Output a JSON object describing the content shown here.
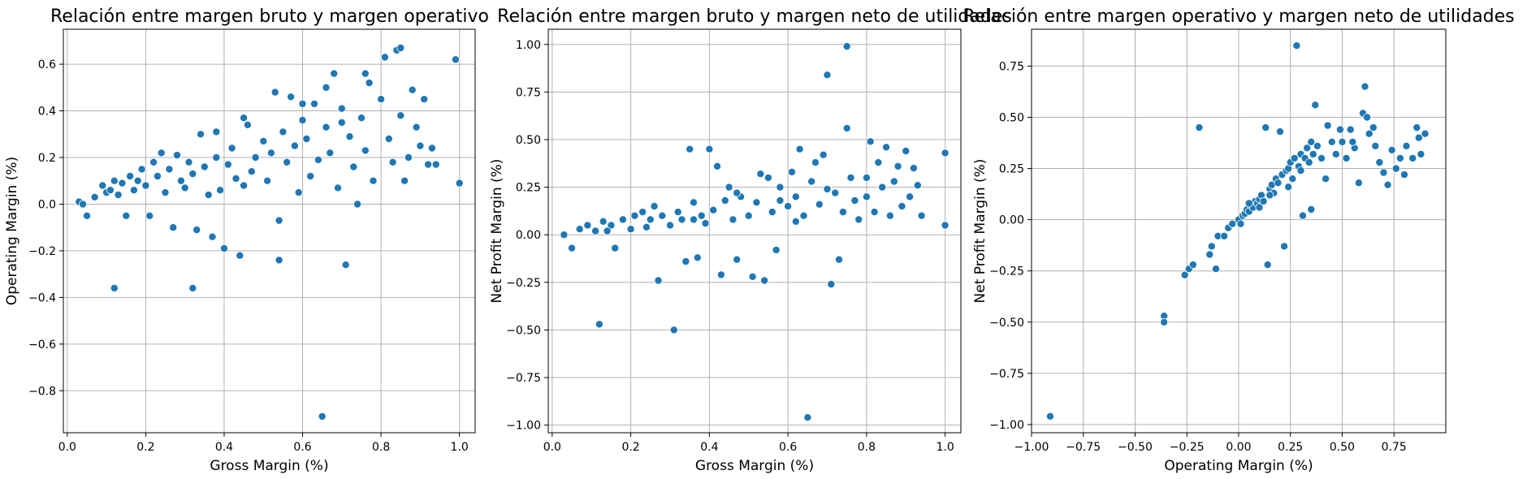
{
  "chart_data": [
    {
      "type": "scatter",
      "title": "Relación entre margen bruto y margen operativo",
      "xlabel": "Gross Margin (%)",
      "ylabel": "Operating Margin (%)",
      "xlim": [
        -0.01,
        1.04
      ],
      "ylim": [
        -0.98,
        0.75
      ],
      "xticks": [
        0.0,
        0.2,
        0.4,
        0.6,
        0.8,
        1.0
      ],
      "xtick_labels": [
        "0.0",
        "0.2",
        "0.4",
        "0.6",
        "0.8",
        "1.0"
      ],
      "yticks": [
        -0.8,
        -0.6,
        -0.4,
        -0.2,
        0.0,
        0.2,
        0.4,
        0.6
      ],
      "ytick_labels": [
        "−0.8",
        "−0.6",
        "−0.4",
        "−0.2",
        "0.0",
        "0.2",
        "0.4",
        "0.6"
      ],
      "grid": true,
      "points": [
        [
          0.03,
          0.01
        ],
        [
          0.04,
          0.0
        ],
        [
          0.05,
          -0.05
        ],
        [
          0.07,
          0.03
        ],
        [
          0.09,
          0.08
        ],
        [
          0.1,
          0.05
        ],
        [
          0.11,
          0.06
        ],
        [
          0.12,
          0.1
        ],
        [
          0.13,
          0.04
        ],
        [
          0.14,
          0.09
        ],
        [
          0.15,
          -0.05
        ],
        [
          0.16,
          0.12
        ],
        [
          0.17,
          0.06
        ],
        [
          0.18,
          0.1
        ],
        [
          0.19,
          0.15
        ],
        [
          0.2,
          0.08
        ],
        [
          0.21,
          -0.05
        ],
        [
          0.22,
          0.18
        ],
        [
          0.23,
          0.12
        ],
        [
          0.25,
          0.05
        ],
        [
          0.26,
          0.15
        ],
        [
          0.27,
          -0.1
        ],
        [
          0.28,
          0.21
        ],
        [
          0.29,
          0.1
        ],
        [
          0.3,
          0.07
        ],
        [
          0.31,
          0.18
        ],
        [
          0.32,
          0.13
        ],
        [
          0.33,
          -0.11
        ],
        [
          0.34,
          0.3
        ],
        [
          0.35,
          0.16
        ],
        [
          0.36,
          0.04
        ],
        [
          0.37,
          -0.14
        ],
        [
          0.38,
          0.2
        ],
        [
          0.39,
          0.06
        ],
        [
          0.4,
          -0.19
        ],
        [
          0.41,
          0.17
        ],
        [
          0.42,
          0.24
        ],
        [
          0.43,
          0.11
        ],
        [
          0.44,
          -0.22
        ],
        [
          0.45,
          0.08
        ],
        [
          0.46,
          0.34
        ],
        [
          0.47,
          0.14
        ],
        [
          0.48,
          0.2
        ],
        [
          0.5,
          0.27
        ],
        [
          0.51,
          0.1
        ],
        [
          0.52,
          0.22
        ],
        [
          0.53,
          0.48
        ],
        [
          0.54,
          -0.07
        ],
        [
          0.55,
          0.31
        ],
        [
          0.56,
          0.18
        ],
        [
          0.57,
          0.46
        ],
        [
          0.58,
          0.25
        ],
        [
          0.59,
          0.05
        ],
        [
          0.6,
          0.36
        ],
        [
          0.61,
          0.28
        ],
        [
          0.62,
          0.12
        ],
        [
          0.63,
          0.43
        ],
        [
          0.64,
          0.19
        ],
        [
          0.65,
          -0.91
        ],
        [
          0.66,
          0.33
        ],
        [
          0.67,
          0.22
        ],
        [
          0.68,
          0.56
        ],
        [
          0.69,
          0.07
        ],
        [
          0.7,
          0.41
        ],
        [
          0.71,
          -0.26
        ],
        [
          0.72,
          0.29
        ],
        [
          0.73,
          0.16
        ],
        [
          0.74,
          0.0
        ],
        [
          0.75,
          0.37
        ],
        [
          0.76,
          0.23
        ],
        [
          0.77,
          0.52
        ],
        [
          0.78,
          0.1
        ],
        [
          0.8,
          0.45
        ],
        [
          0.81,
          0.63
        ],
        [
          0.82,
          0.28
        ],
        [
          0.83,
          0.18
        ],
        [
          0.84,
          0.66
        ],
        [
          0.85,
          0.38
        ],
        [
          0.86,
          0.1
        ],
        [
          0.87,
          0.2
        ],
        [
          0.88,
          0.49
        ],
        [
          0.89,
          0.33
        ],
        [
          0.9,
          0.25
        ],
        [
          0.91,
          0.45
        ],
        [
          0.92,
          0.17
        ],
        [
          0.93,
          0.24
        ],
        [
          0.94,
          0.17
        ],
        [
          0.99,
          0.62
        ],
        [
          1.0,
          0.09
        ],
        [
          0.12,
          -0.36
        ],
        [
          0.32,
          -0.36
        ],
        [
          0.54,
          -0.24
        ],
        [
          0.76,
          0.56
        ],
        [
          0.85,
          0.67
        ],
        [
          0.6,
          0.43
        ],
        [
          0.45,
          0.37
        ],
        [
          0.38,
          0.31
        ],
        [
          0.24,
          0.22
        ],
        [
          0.66,
          0.5
        ],
        [
          0.7,
          0.35
        ]
      ]
    },
    {
      "type": "scatter",
      "title": "Relación entre margen bruto y margen neto de utilidades",
      "xlabel": "Gross Margin (%)",
      "ylabel": "Net Profit Margin (%)",
      "xlim": [
        -0.01,
        1.04
      ],
      "ylim": [
        -1.04,
        1.08
      ],
      "xticks": [
        0.0,
        0.2,
        0.4,
        0.6,
        0.8,
        1.0
      ],
      "xtick_labels": [
        "0.0",
        "0.2",
        "0.4",
        "0.6",
        "0.8",
        "1.0"
      ],
      "yticks": [
        -1.0,
        -0.75,
        -0.5,
        -0.25,
        0.0,
        0.25,
        0.5,
        0.75,
        1.0
      ],
      "ytick_labels": [
        "−1.00",
        "−0.75",
        "−0.50",
        "−0.25",
        "0.00",
        "0.25",
        "0.50",
        "0.75",
        "1.00"
      ],
      "grid": true,
      "points": [
        [
          0.03,
          0.0
        ],
        [
          0.05,
          -0.07
        ],
        [
          0.07,
          0.03
        ],
        [
          0.09,
          0.05
        ],
        [
          0.11,
          0.02
        ],
        [
          0.12,
          -0.47
        ],
        [
          0.13,
          0.07
        ],
        [
          0.15,
          0.05
        ],
        [
          0.16,
          -0.07
        ],
        [
          0.18,
          0.08
        ],
        [
          0.2,
          0.03
        ],
        [
          0.21,
          0.1
        ],
        [
          0.23,
          0.12
        ],
        [
          0.25,
          0.08
        ],
        [
          0.26,
          0.15
        ],
        [
          0.27,
          -0.24
        ],
        [
          0.28,
          0.1
        ],
        [
          0.3,
          0.05
        ],
        [
          0.31,
          -0.5
        ],
        [
          0.32,
          0.12
        ],
        [
          0.33,
          0.08
        ],
        [
          0.34,
          -0.14
        ],
        [
          0.35,
          0.45
        ],
        [
          0.36,
          0.17
        ],
        [
          0.37,
          -0.12
        ],
        [
          0.38,
          0.1
        ],
        [
          0.39,
          0.06
        ],
        [
          0.4,
          0.45
        ],
        [
          0.41,
          0.13
        ],
        [
          0.42,
          0.36
        ],
        [
          0.43,
          -0.21
        ],
        [
          0.44,
          0.18
        ],
        [
          0.45,
          0.25
        ],
        [
          0.46,
          0.08
        ],
        [
          0.47,
          -0.13
        ],
        [
          0.48,
          0.2
        ],
        [
          0.5,
          0.1
        ],
        [
          0.51,
          -0.22
        ],
        [
          0.52,
          0.17
        ],
        [
          0.53,
          0.32
        ],
        [
          0.54,
          -0.24
        ],
        [
          0.55,
          0.3
        ],
        [
          0.56,
          0.12
        ],
        [
          0.57,
          -0.08
        ],
        [
          0.58,
          0.25
        ],
        [
          0.6,
          0.15
        ],
        [
          0.61,
          0.33
        ],
        [
          0.62,
          0.2
        ],
        [
          0.63,
          0.45
        ],
        [
          0.64,
          0.1
        ],
        [
          0.65,
          -0.96
        ],
        [
          0.66,
          0.28
        ],
        [
          0.67,
          0.38
        ],
        [
          0.68,
          0.16
        ],
        [
          0.69,
          0.42
        ],
        [
          0.7,
          0.84
        ],
        [
          0.71,
          -0.26
        ],
        [
          0.72,
          0.22
        ],
        [
          0.73,
          -0.13
        ],
        [
          0.74,
          0.12
        ],
        [
          0.75,
          0.99
        ],
        [
          0.76,
          0.3
        ],
        [
          0.77,
          0.18
        ],
        [
          0.78,
          0.08
        ],
        [
          0.8,
          0.2
        ],
        [
          0.81,
          0.49
        ],
        [
          0.82,
          0.12
        ],
        [
          0.83,
          0.38
        ],
        [
          0.84,
          0.25
        ],
        [
          0.85,
          0.46
        ],
        [
          0.86,
          0.1
        ],
        [
          0.87,
          0.28
        ],
        [
          0.88,
          0.36
        ],
        [
          0.89,
          0.15
        ],
        [
          0.9,
          0.44
        ],
        [
          0.91,
          0.2
        ],
        [
          0.92,
          0.35
        ],
        [
          0.93,
          0.26
        ],
        [
          0.94,
          0.1
        ],
        [
          1.0,
          0.43
        ],
        [
          1.0,
          0.05
        ],
        [
          0.75,
          0.56
        ],
        [
          0.58,
          0.18
        ],
        [
          0.47,
          0.22
        ],
        [
          0.36,
          0.08
        ],
        [
          0.24,
          0.04
        ],
        [
          0.14,
          0.02
        ],
        [
          0.62,
          0.07
        ],
        [
          0.7,
          0.24
        ],
        [
          0.8,
          0.3
        ]
      ]
    },
    {
      "type": "scatter",
      "title": "Relación entre margen operativo y margen neto de utilidades",
      "xlabel": "Operating Margin (%)",
      "ylabel": "Net Profit Margin (%)",
      "xlim": [
        -1.0,
        1.0
      ],
      "ylim": [
        -1.04,
        0.93
      ],
      "xticks": [
        -1.0,
        -0.75,
        -0.5,
        -0.25,
        0.0,
        0.25,
        0.5,
        0.75
      ],
      "xtick_labels": [
        "−1.00",
        "−0.75",
        "−0.50",
        "−0.25",
        "0.00",
        "0.25",
        "0.50",
        "0.75"
      ],
      "yticks": [
        -1.0,
        -0.75,
        -0.5,
        -0.25,
        0.0,
        0.25,
        0.5,
        0.75
      ],
      "ytick_labels": [
        "−1.00",
        "−0.75",
        "−0.50",
        "−0.25",
        "0.00",
        "0.25",
        "0.50",
        "0.75"
      ],
      "grid": true,
      "points": [
        [
          -0.91,
          -0.96
        ],
        [
          -0.36,
          -0.47
        ],
        [
          -0.36,
          -0.5
        ],
        [
          -0.26,
          -0.27
        ],
        [
          -0.24,
          -0.24
        ],
        [
          -0.22,
          -0.22
        ],
        [
          -0.19,
          0.45
        ],
        [
          -0.14,
          -0.17
        ],
        [
          -0.13,
          -0.13
        ],
        [
          -0.11,
          -0.24
        ],
        [
          -0.1,
          -0.08
        ],
        [
          -0.07,
          -0.08
        ],
        [
          -0.05,
          -0.04
        ],
        [
          -0.03,
          -0.02
        ],
        [
          0.0,
          0.0
        ],
        [
          0.01,
          -0.02
        ],
        [
          0.02,
          0.02
        ],
        [
          0.03,
          0.03
        ],
        [
          0.04,
          0.05
        ],
        [
          0.05,
          0.04
        ],
        [
          0.06,
          0.07
        ],
        [
          0.07,
          0.06
        ],
        [
          0.08,
          0.09
        ],
        [
          0.09,
          0.08
        ],
        [
          0.1,
          0.1
        ],
        [
          0.11,
          0.12
        ],
        [
          0.12,
          0.09
        ],
        [
          0.13,
          0.45
        ],
        [
          0.14,
          -0.22
        ],
        [
          0.15,
          0.15
        ],
        [
          0.16,
          0.17
        ],
        [
          0.17,
          0.13
        ],
        [
          0.18,
          0.2
        ],
        [
          0.19,
          0.18
        ],
        [
          0.2,
          0.43
        ],
        [
          0.21,
          0.22
        ],
        [
          0.22,
          -0.13
        ],
        [
          0.23,
          0.24
        ],
        [
          0.24,
          0.25
        ],
        [
          0.25,
          0.28
        ],
        [
          0.26,
          0.2
        ],
        [
          0.27,
          0.3
        ],
        [
          0.28,
          0.85
        ],
        [
          0.29,
          0.26
        ],
        [
          0.3,
          0.32
        ],
        [
          0.31,
          0.02
        ],
        [
          0.32,
          0.3
        ],
        [
          0.33,
          0.35
        ],
        [
          0.34,
          0.28
        ],
        [
          0.35,
          0.38
        ],
        [
          0.36,
          0.32
        ],
        [
          0.37,
          0.56
        ],
        [
          0.38,
          0.36
        ],
        [
          0.4,
          0.3
        ],
        [
          0.42,
          0.2
        ],
        [
          0.43,
          0.46
        ],
        [
          0.45,
          0.38
        ],
        [
          0.47,
          0.32
        ],
        [
          0.49,
          0.44
        ],
        [
          0.5,
          0.38
        ],
        [
          0.52,
          0.3
        ],
        [
          0.54,
          0.44
        ],
        [
          0.56,
          0.35
        ],
        [
          0.58,
          0.18
        ],
        [
          0.6,
          0.52
        ],
        [
          0.61,
          0.65
        ],
        [
          0.62,
          0.5
        ],
        [
          0.63,
          0.42
        ],
        [
          0.65,
          0.45
        ],
        [
          0.66,
          0.36
        ],
        [
          0.68,
          0.28
        ],
        [
          0.7,
          0.23
        ],
        [
          0.72,
          0.17
        ],
        [
          0.74,
          0.34
        ],
        [
          0.76,
          0.25
        ],
        [
          0.78,
          0.3
        ],
        [
          0.8,
          0.22
        ],
        [
          0.81,
          0.36
        ],
        [
          0.84,
          0.3
        ],
        [
          0.86,
          0.45
        ],
        [
          0.87,
          0.4
        ],
        [
          0.88,
          0.32
        ],
        [
          0.9,
          0.42
        ],
        [
          0.15,
          0.12
        ],
        [
          0.1,
          0.06
        ],
        [
          0.3,
          0.24
        ],
        [
          0.24,
          0.16
        ],
        [
          0.05,
          0.08
        ],
        [
          0.35,
          0.05
        ],
        [
          0.55,
          0.38
        ]
      ]
    }
  ]
}
